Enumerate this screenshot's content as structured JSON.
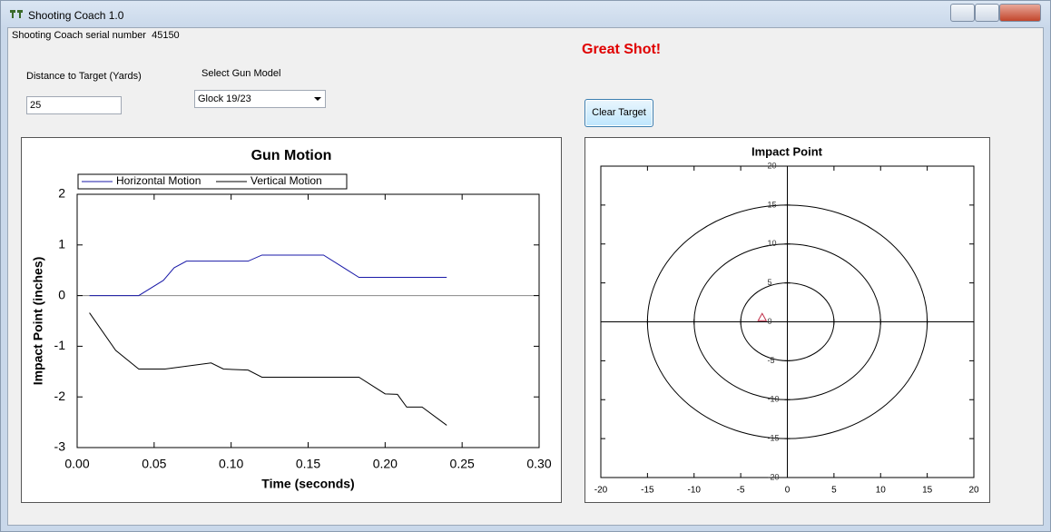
{
  "window": {
    "title": "Shooting Coach 1.0",
    "serial": "Shooting Coach serial number  45150",
    "message": "Great Shot!"
  },
  "form": {
    "distance_label": "Distance to Target (Yards)",
    "distance_value": "25",
    "gun_label": "Select Gun Model",
    "gun_value": "Glock 19/23",
    "clear_button": "Clear Target"
  },
  "chart_data": [
    {
      "type": "line",
      "title": "Gun Motion",
      "x_label": "Time (seconds)",
      "y_label": "Impact Point (inches)",
      "xlim": [
        0,
        0.3
      ],
      "ylim": [
        -3,
        2
      ],
      "xticks": [
        {
          "value": 0,
          "label": "0.00"
        },
        0.05,
        {
          "value": 0.1,
          "label": "0.10"
        },
        0.15,
        {
          "value": 0.2,
          "label": "0.20"
        },
        0.25,
        {
          "value": 0.3,
          "label": "0.30"
        }
      ],
      "yticks": [
        -3,
        -2,
        -1,
        0,
        1,
        2
      ],
      "series": [
        {
          "name": "Horizontal Motion",
          "color": "#1a1aa8",
          "x": [
            0.008,
            0.04,
            0.056,
            0.063,
            0.071,
            0.111,
            0.12,
            0.16,
            0.183,
            0.24
          ],
          "values": [
            0,
            0,
            0.3,
            0.55,
            0.68,
            0.68,
            0.8,
            0.8,
            0.36,
            0.36
          ]
        },
        {
          "name": "Vertical Motion",
          "color": "#000000",
          "x": [
            0.008,
            0.025,
            0.04,
            0.057,
            0.087,
            0.095,
            0.111,
            0.12,
            0.183,
            0.2,
            0.208,
            0.214,
            0.224,
            0.24
          ],
          "values": [
            -0.34,
            -1.08,
            -1.45,
            -1.45,
            -1.33,
            -1.45,
            -1.47,
            -1.61,
            -1.61,
            -1.94,
            -1.95,
            -2.2,
            -2.2,
            -2.56
          ]
        }
      ]
    },
    {
      "type": "scatter",
      "title": "Impact Point",
      "xlim": [
        -20,
        20
      ],
      "ylim": [
        -20,
        20
      ],
      "xticks": [
        -20,
        -15,
        -10,
        -5,
        0,
        5,
        10,
        15,
        20
      ],
      "yticks": [
        -20,
        -15,
        -10,
        -5,
        0,
        5,
        10,
        15,
        20
      ],
      "rings": [
        5,
        10,
        15
      ],
      "series": [
        {
          "color": "#c0304a",
          "x": [
            -2.7
          ],
          "values": [
            0.5
          ]
        }
      ]
    }
  ]
}
